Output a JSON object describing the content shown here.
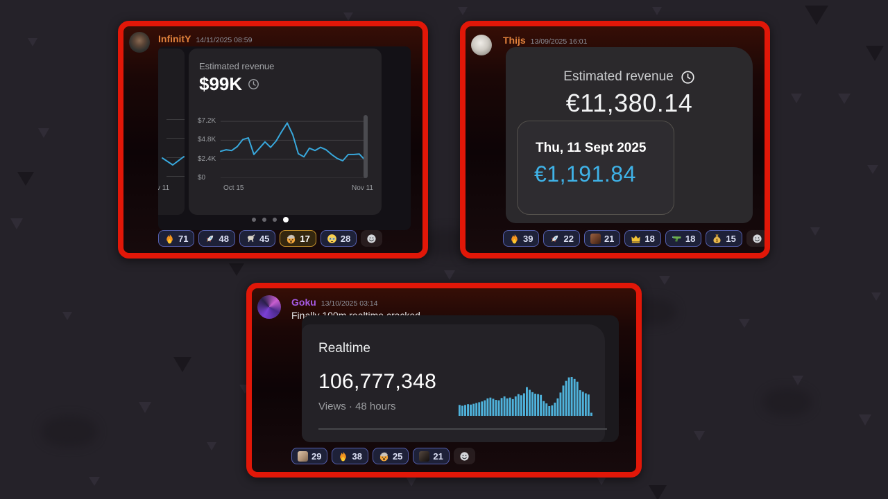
{
  "page": {
    "background_color": "#252229",
    "frame_color": "#e11708",
    "accent_blue": "#3fb3e8"
  },
  "messages": [
    {
      "author": "InfinitY",
      "author_color": "#e0813c",
      "timestamp": "14/11/2025 08:59",
      "embed": {
        "kind": "revenue-carousel",
        "title": "Estimated revenue",
        "value": "$99K",
        "partial_label": "v 11",
        "y_labels": [
          "$7.2K",
          "$4.8K",
          "$2.4K",
          "$0"
        ],
        "x_labels": [
          "Oct 15",
          "Nov 11"
        ],
        "dots_total": 4,
        "dots_active": 3
      },
      "reactions": [
        {
          "name": "fire",
          "count": 71
        },
        {
          "name": "rocket",
          "count": 48
        },
        {
          "name": "goat",
          "count": 45
        },
        {
          "name": "exploding-head",
          "count": 17,
          "highlighted": true
        },
        {
          "name": "holding-back-tears",
          "count": 28
        }
      ]
    },
    {
      "author": "Thijs",
      "author_color": "#e0813c",
      "timestamp": "13/09/2025 16:01",
      "embed": {
        "kind": "revenue-total",
        "title": "Estimated revenue",
        "total": "€11,380.14",
        "day_label": "Thu, 11 Sept 2025",
        "day_value": "€1,191.84",
        "day_value_color": "#3fb3e8"
      },
      "reactions": [
        {
          "name": "fire",
          "count": 39
        },
        {
          "name": "rocket",
          "count": 22
        },
        {
          "name": "custom-face-tan",
          "count": 21
        },
        {
          "name": "crown",
          "count": 18
        },
        {
          "name": "water-gun",
          "count": 18
        },
        {
          "name": "money-bag",
          "count": 15
        }
      ]
    },
    {
      "author": "Goku",
      "author_color": "#a55ae4",
      "timestamp": "13/10/2025 03:14",
      "text": "Finally 100m realtime cracked",
      "embed": {
        "kind": "realtime",
        "title": "Realtime",
        "value": "106,777,348",
        "subtitle": "Views · 48 hours"
      },
      "reactions": [
        {
          "name": "custom-face-beige",
          "count": 29
        },
        {
          "name": "fire",
          "count": 38
        },
        {
          "name": "exploding-head",
          "count": 25
        },
        {
          "name": "custom-face-dark",
          "count": 21
        }
      ]
    }
  ],
  "chart_data": [
    {
      "type": "line",
      "title": "Estimated revenue (daily, USD)",
      "summary_value": "$99K",
      "x_labels": [
        "Oct 15",
        "Nov 11"
      ],
      "ylim": [
        0,
        7200
      ],
      "ymax_draw": 8000,
      "yticks": [
        7200,
        4800,
        2400,
        0
      ],
      "ytick_labels": [
        "$7.2K",
        "$4.8K",
        "$2.4K",
        "$0"
      ],
      "values": [
        3400,
        3600,
        3500,
        4000,
        4900,
        5100,
        3000,
        3800,
        4600,
        3900,
        4700,
        5900,
        7000,
        5500,
        3100,
        2700,
        3800,
        3500,
        3900,
        3600,
        3000,
        2500,
        2200,
        3000,
        3000,
        3050,
        2300
      ],
      "color": "#38a8dc",
      "grid": true,
      "legend": "none"
    },
    {
      "type": "bar",
      "title": "Realtime views (48 hours)",
      "total_value": "106,777,348",
      "subtitle": "Views · 48 hours",
      "unit": "percent_of_max",
      "values": [
        28,
        26,
        28,
        30,
        29,
        31,
        33,
        35,
        37,
        40,
        45,
        47,
        44,
        41,
        40,
        46,
        50,
        45,
        47,
        43,
        50,
        56,
        53,
        58,
        74,
        67,
        61,
        57,
        56,
        54,
        38,
        32,
        25,
        27,
        34,
        45,
        60,
        78,
        90,
        99,
        100,
        95,
        88,
        66,
        62,
        58,
        55,
        8
      ],
      "color": "#4fb3dc",
      "grid": false,
      "legend": "none"
    }
  ]
}
